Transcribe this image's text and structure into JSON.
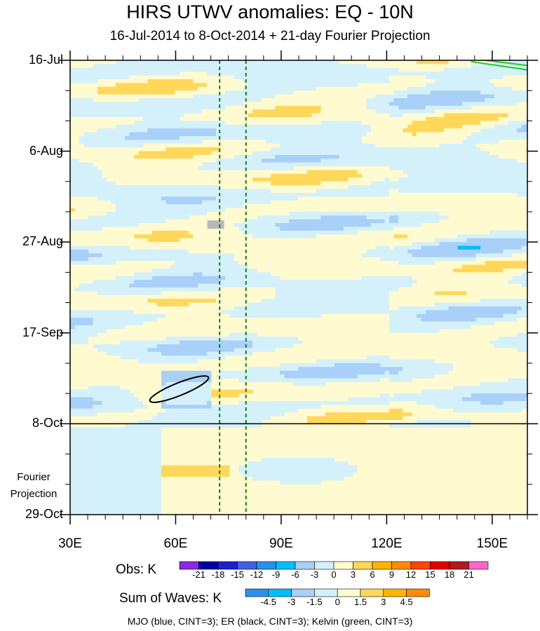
{
  "chart_data": {
    "type": "heatmap",
    "title": "HIRS UTWV anomalies: EQ - 10N",
    "subtitle": "16-Jul-2014 to 8-Oct-2014 + 21-day Fourier Projection",
    "x_range": [
      30,
      160
    ],
    "x_ticks": [
      {
        "value": 30,
        "label": "30E"
      },
      {
        "value": 60,
        "label": "60E"
      },
      {
        "value": 90,
        "label": "90E"
      },
      {
        "value": 120,
        "label": "120E"
      },
      {
        "value": 150,
        "label": "150E"
      }
    ],
    "y_range_days": [
      0,
      105
    ],
    "y_ticks": [
      {
        "day": 0,
        "label": "16-Jul"
      },
      {
        "day": 21,
        "label": "6-Aug"
      },
      {
        "day": 42,
        "label": "27-Aug"
      },
      {
        "day": 63,
        "label": "17-Sep"
      },
      {
        "day": 84,
        "label": "8-Oct"
      },
      {
        "day": 105,
        "label": "29-Oct"
      }
    ],
    "projection_start_day": 84,
    "projection_label_line1": "Fourier",
    "projection_label_line2": "Projection",
    "reference_lines_lon": [
      72.5,
      80
    ],
    "er_contour": {
      "description": "ER (black) closed contour near 55E-70E, late Sep",
      "center_lon": 61,
      "center_day": 76
    },
    "kelvin_contour": {
      "description": "Kelvin (green) contour near 145E-160E, mid-July"
    },
    "colorbar_obs": {
      "title": "Obs: K",
      "levels": [
        "-21",
        "-18",
        "-15",
        "-12",
        "-9",
        "-6",
        "-3",
        "0",
        "3",
        "6",
        "9",
        "12",
        "15",
        "18",
        "21"
      ],
      "colors": [
        "#8a2be2",
        "#0000a0",
        "#1f1fcf",
        "#4060e0",
        "#2a8ff0",
        "#00bfff",
        "#a8d0f8",
        "#d4f0fa",
        "#fffad0",
        "#ffd75a",
        "#ffb400",
        "#ff8c00",
        "#ff4400",
        "#e00000",
        "#b01a1a",
        "#ff66cc"
      ]
    },
    "colorbar_waves": {
      "title": "Sum of Waves: K",
      "levels": [
        "-4.5",
        "-3",
        "-1.5",
        "0",
        "1.5",
        "3",
        "4.5"
      ],
      "colors": [
        "#2a8ff0",
        "#00bfff",
        "#a8d0f8",
        "#d4f0fa",
        "#fffad0",
        "#ffd75a",
        "#ffb400",
        "#ff8c00"
      ]
    },
    "footer": "MJO (blue, CINT=3); ER (black, CINT=3); Kelvin (green, CINT=3)"
  }
}
